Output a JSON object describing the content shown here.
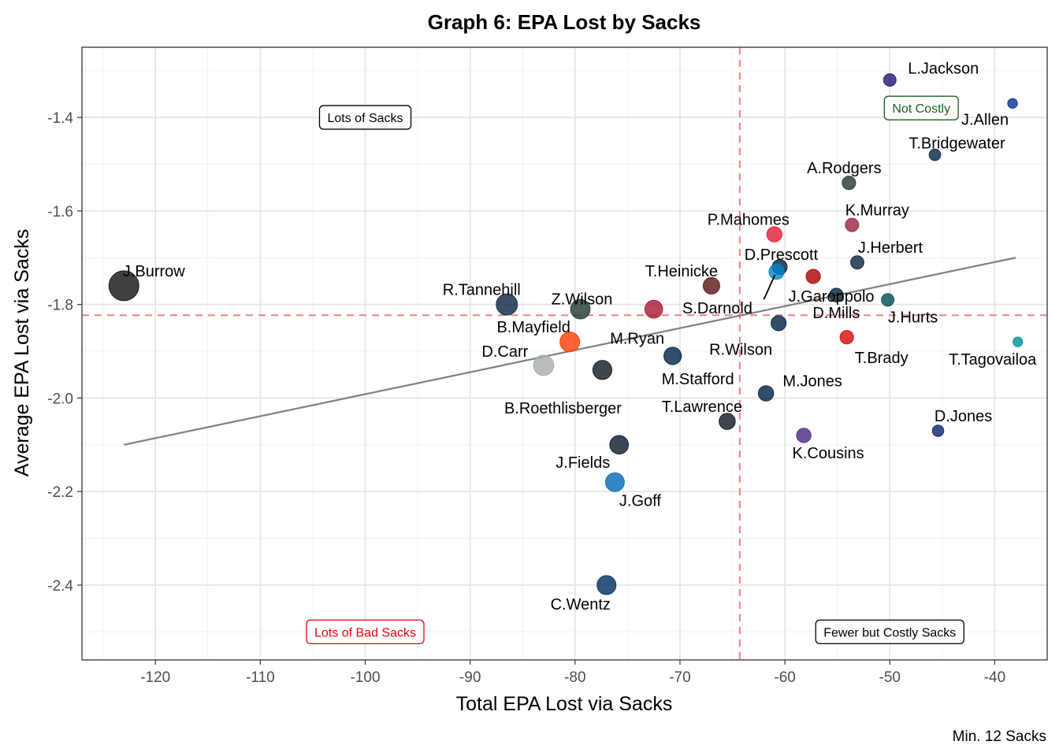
{
  "chart_data": {
    "type": "scatter",
    "title": "Graph 6: EPA Lost by Sacks",
    "xlabel": "Total EPA Lost via Sacks",
    "ylabel": "Average EPA Lost via Sacks",
    "caption": "Min. 12 Sacks",
    "xlim": [
      -127,
      -35
    ],
    "ylim": [
      -2.56,
      -1.25
    ],
    "x_ticks": [
      -120,
      -110,
      -100,
      -90,
      -80,
      -70,
      -60,
      -50,
      -40
    ],
    "x_tick_labels": [
      "-120",
      "-110",
      "-100",
      "-90",
      "-80",
      "-70",
      "-60",
      "-50",
      "-40"
    ],
    "y_ticks": [
      -1.4,
      -1.6,
      -1.8,
      -2.0,
      -2.2,
      -2.4
    ],
    "y_tick_labels": [
      "-1.4",
      "-1.6",
      "-1.8",
      "-2.0",
      "-2.2",
      "-2.4"
    ],
    "grid": true,
    "reference_lines": {
      "x_mean": -64.3,
      "y_mean": -1.823,
      "color": "#f08080"
    },
    "trend_line": {
      "x": [
        -123,
        -38
      ],
      "y": [
        -2.1,
        -1.7
      ],
      "color": "#808080"
    },
    "quadrant_labels": [
      {
        "text": "Lots of Sacks",
        "x": -100,
        "y": -1.4,
        "color": "#000000"
      },
      {
        "text": "Not Costly",
        "x": -47,
        "y": -1.38,
        "color": "#1a5e1a"
      },
      {
        "text": "Lots of Bad Sacks",
        "x": -100,
        "y": -2.5,
        "color": "#e8000b"
      },
      {
        "text": "Fewer but Costly Sacks",
        "x": -50,
        "y": -2.5,
        "color": "#000000"
      }
    ],
    "points": [
      {
        "name": "J.Burrow",
        "x": -123,
        "y": -1.76,
        "color": "#101010"
      },
      {
        "name": "L.Jackson",
        "x": -50,
        "y": -1.32,
        "color": "#241773"
      },
      {
        "name": "J.Allen",
        "x": -38.3,
        "y": -1.37,
        "color": "#00338d"
      },
      {
        "name": "T.Bridgewater",
        "x": -45.7,
        "y": -1.48,
        "color": "#002244"
      },
      {
        "name": "A.Rodgers",
        "x": -53.9,
        "y": -1.54,
        "color": "#203731"
      },
      {
        "name": "K.Murray",
        "x": -53.6,
        "y": -1.63,
        "color": "#97233f"
      },
      {
        "name": "P.Mahomes",
        "x": -61,
        "y": -1.65,
        "color": "#e31837"
      },
      {
        "name": "J.Herbert",
        "x": -53.1,
        "y": -1.71,
        "color": "#0c2340"
      },
      {
        "name": "D.Prescott",
        "x": -60.5,
        "y": -1.72,
        "color": "#041e42"
      },
      {
        "name": "S.Darnold",
        "x": -60.8,
        "y": -1.73,
        "color": "#0085ca"
      },
      {
        "name": "J.Garoppolo",
        "x": -57.3,
        "y": -1.74,
        "color": "#aa0000"
      },
      {
        "name": "T.Heinicke",
        "x": -67,
        "y": -1.76,
        "color": "#5a1414"
      },
      {
        "name": "D.Mills",
        "x": -55.1,
        "y": -1.78,
        "color": "#03202f"
      },
      {
        "name": "J.Hurts",
        "x": -50.2,
        "y": -1.79,
        "color": "#004c54"
      },
      {
        "name": "R.Tannehill",
        "x": -86.5,
        "y": -1.8,
        "color": "#0c2340"
      },
      {
        "name": "Z.Wilson",
        "x": -79.5,
        "y": -1.81,
        "color": "#203731"
      },
      {
        "name": "M.Ryan",
        "x": -72.5,
        "y": -1.81,
        "color": "#a71930"
      },
      {
        "name": "R.Wilson",
        "x": -60.6,
        "y": -1.84,
        "color": "#002244"
      },
      {
        "name": "T.Brady",
        "x": -54.1,
        "y": -1.87,
        "color": "#d50a0a"
      },
      {
        "name": "T.Tagovailoa",
        "x": -37.8,
        "y": -1.88,
        "color": "#008e97"
      },
      {
        "name": "B.Mayfield",
        "x": -80.5,
        "y": -1.88,
        "color": "#ff3c00"
      },
      {
        "name": "M.Stafford",
        "x": -70.7,
        "y": -1.91,
        "color": "#002244"
      },
      {
        "name": "D.Carr",
        "x": -83,
        "y": -1.93,
        "color": "#a5acaf"
      },
      {
        "name": "B.Roethlisberger",
        "x": -77.4,
        "y": -1.94,
        "color": "#101820"
      },
      {
        "name": "M.Jones",
        "x": -61.8,
        "y": -1.99,
        "color": "#002244"
      },
      {
        "name": "T.Lawrence",
        "x": -65.5,
        "y": -2.05,
        "color": "#101820"
      },
      {
        "name": "D.Jones",
        "x": -45.4,
        "y": -2.07,
        "color": "#0b2265"
      },
      {
        "name": "K.Cousins",
        "x": -58.2,
        "y": -2.08,
        "color": "#4f2683"
      },
      {
        "name": "J.Fields",
        "x": -75.8,
        "y": -2.1,
        "color": "#0b162a"
      },
      {
        "name": "J.Goff",
        "x": -76.2,
        "y": -2.18,
        "color": "#0069b4"
      },
      {
        "name": "C.Wentz",
        "x": -77,
        "y": -2.4,
        "color": "#002c5f"
      }
    ]
  }
}
